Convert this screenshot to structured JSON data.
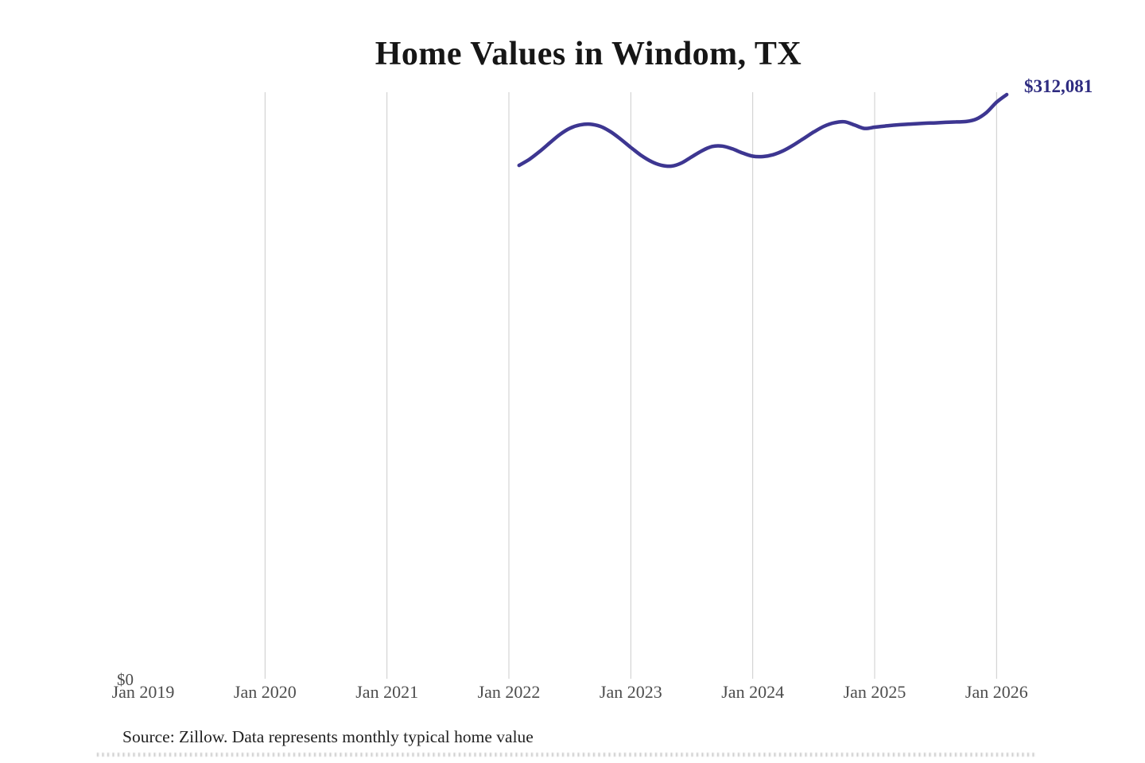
{
  "header": {
    "title": "Home Values in Windom, TX"
  },
  "footer": {
    "source_note": "Source: Zillow. Data represents monthly typical home value"
  },
  "chart_data": {
    "type": "line",
    "title": "Home Values in Windom, TX",
    "series_name": "Monthly typical home value",
    "unit": "USD",
    "legend": "none",
    "grid": "vertical-only",
    "line_color": "#3d3691",
    "gridline_color": "#cccccc",
    "end_label": "$312,081",
    "end_value": 312081,
    "x_axis": {
      "tick_labels": [
        "Jan 2019",
        "Jan 2020",
        "Jan 2021",
        "Jan 2022",
        "Jan 2023",
        "Jan 2024",
        "Jan 2025",
        "Jan 2026"
      ],
      "gridlines_at": [
        "Jan 2020",
        "Jan 2021",
        "Jan 2022",
        "Jan 2023",
        "Jan 2024",
        "Jan 2025",
        "Jan 2026"
      ]
    },
    "y_axis": {
      "zero_label": "$0",
      "min": 0
    },
    "points": [
      {
        "date": "2022-02",
        "value": 274300
      },
      {
        "date": "2022-03",
        "value": 277500
      },
      {
        "date": "2022-04",
        "value": 281600
      },
      {
        "date": "2022-05",
        "value": 286200
      },
      {
        "date": "2022-06",
        "value": 290700
      },
      {
        "date": "2022-07",
        "value": 294100
      },
      {
        "date": "2022-08",
        "value": 295900
      },
      {
        "date": "2022-09",
        "value": 296300
      },
      {
        "date": "2022-10",
        "value": 295100
      },
      {
        "date": "2022-11",
        "value": 292300
      },
      {
        "date": "2022-12",
        "value": 288300
      },
      {
        "date": "2023-01",
        "value": 283900
      },
      {
        "date": "2023-02",
        "value": 279700
      },
      {
        "date": "2023-03",
        "value": 276400
      },
      {
        "date": "2023-04",
        "value": 274400
      },
      {
        "date": "2023-05",
        "value": 273900
      },
      {
        "date": "2023-06",
        "value": 275600
      },
      {
        "date": "2023-07",
        "value": 278900
      },
      {
        "date": "2023-08",
        "value": 282100
      },
      {
        "date": "2023-09",
        "value": 284400
      },
      {
        "date": "2023-10",
        "value": 284600
      },
      {
        "date": "2023-11",
        "value": 283100
      },
      {
        "date": "2023-12",
        "value": 280900
      },
      {
        "date": "2024-01",
        "value": 279200
      },
      {
        "date": "2024-02",
        "value": 279000
      },
      {
        "date": "2024-03",
        "value": 280000
      },
      {
        "date": "2024-04",
        "value": 282100
      },
      {
        "date": "2024-05",
        "value": 285100
      },
      {
        "date": "2024-06",
        "value": 288600
      },
      {
        "date": "2024-07",
        "value": 292100
      },
      {
        "date": "2024-08",
        "value": 295100
      },
      {
        "date": "2024-09",
        "value": 297000
      },
      {
        "date": "2024-10",
        "value": 297600
      },
      {
        "date": "2024-11",
        "value": 295900
      },
      {
        "date": "2024-12",
        "value": 294000
      },
      {
        "date": "2025-01",
        "value": 294700
      },
      {
        "date": "2025-02",
        "value": 295300
      },
      {
        "date": "2025-03",
        "value": 295800
      },
      {
        "date": "2025-04",
        "value": 296200
      },
      {
        "date": "2025-05",
        "value": 296500
      },
      {
        "date": "2025-06",
        "value": 296800
      },
      {
        "date": "2025-07",
        "value": 297000
      },
      {
        "date": "2025-08",
        "value": 297300
      },
      {
        "date": "2025-09",
        "value": 297500
      },
      {
        "date": "2025-10",
        "value": 297700
      },
      {
        "date": "2025-11",
        "value": 299000
      },
      {
        "date": "2025-12",
        "value": 302500
      },
      {
        "date": "2026-01",
        "value": 308000
      },
      {
        "date": "2026-02",
        "value": 312081
      }
    ]
  }
}
